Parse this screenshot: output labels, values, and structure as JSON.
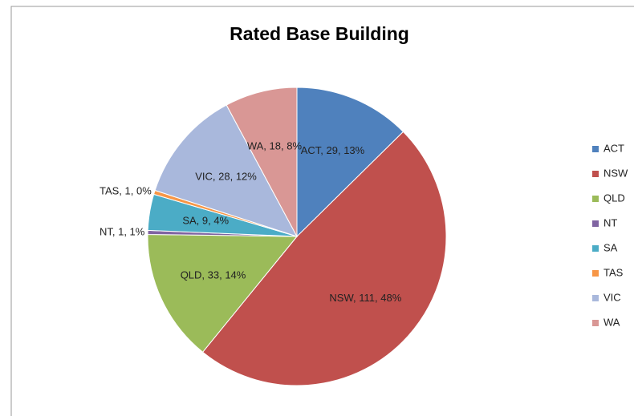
{
  "chart_data": {
    "type": "pie",
    "title": "Rated Base Building",
    "categories": [
      "ACT",
      "NSW",
      "QLD",
      "NT",
      "SA",
      "TAS",
      "VIC",
      "WA"
    ],
    "values": [
      29,
      111,
      33,
      1,
      9,
      1,
      28,
      18
    ],
    "value_labels": [
      "ACT, 29, 13%",
      "NSW, 111, 48%",
      "QLD, 33, 14%",
      "NT, 1, 1%",
      "SA, 9, 4%",
      "TAS, 1, 0%",
      "VIC, 28, 12%",
      "WA, 18, 8%"
    ],
    "colors": [
      "#4f81bd",
      "#c0504d",
      "#9bbb59",
      "#8064a2",
      "#4bacc6",
      "#f79646",
      "#a9b8dc",
      "#d99795"
    ],
    "legend": "right"
  }
}
